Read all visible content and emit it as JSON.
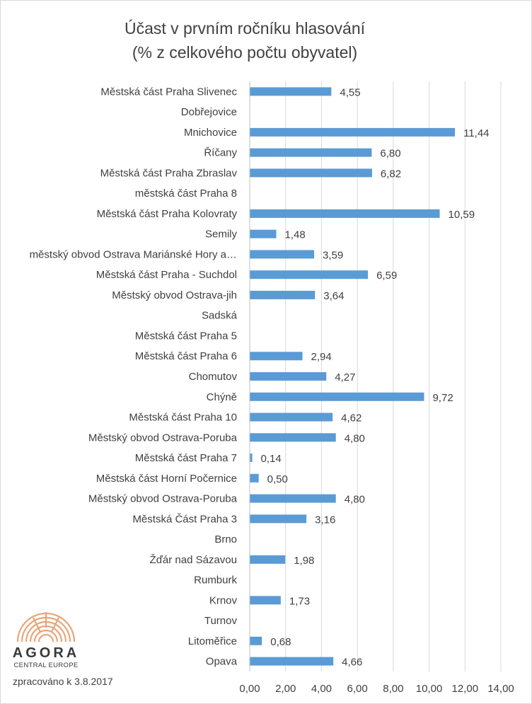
{
  "chart_data": {
    "type": "bar",
    "orientation": "horizontal",
    "title": "Účast v prvním ročníku hlasování",
    "subtitle": "(% z celkového počtu obyvatel)",
    "categories": [
      "Městská část Praha Slivenec",
      "Dobřejovice",
      "Mnichovice",
      "Říčany",
      "Městská část Praha Zbraslav",
      "městská část Praha 8",
      "Městská část Praha Kolovraty",
      "Semily",
      "městský obvod Ostrava Mariánské Hory  a…",
      "Městská část Praha - Suchdol",
      "Městský obvod Ostrava-jih",
      "Sadská",
      "Městská část Praha 5",
      "Městská část Praha 6",
      "Chomutov",
      "Chýně",
      "Městská část Praha 10",
      "Městský obvod Ostrava-Poruba",
      "Městská část Praha 7",
      "Městská část Horní Počernice",
      "Městský obvod Ostrava-Poruba",
      "Městská Část Praha 3",
      "Brno",
      "Žďár nad Sázavou",
      "Rumburk",
      "Krnov",
      "Turnov",
      "Litoměřice",
      "Opava"
    ],
    "values": [
      4.55,
      null,
      11.44,
      6.8,
      6.82,
      null,
      10.59,
      1.48,
      3.59,
      6.59,
      3.64,
      null,
      null,
      2.94,
      4.27,
      9.72,
      4.62,
      4.8,
      0.14,
      0.5,
      4.8,
      3.16,
      null,
      1.98,
      null,
      1.73,
      null,
      0.68,
      4.66
    ],
    "value_labels": [
      "4,55",
      "",
      "11,44",
      "6,80",
      "6,82",
      "",
      "10,59",
      "1,48",
      "3,59",
      "6,59",
      "3,64",
      "",
      "",
      "2,94",
      "4,27",
      "9,72",
      "4,62",
      "4,80",
      "0,14",
      "0,50",
      "4,80",
      "3,16",
      "",
      "1,98",
      "",
      "1,73",
      "",
      "0,68",
      "4,66"
    ],
    "xlim": [
      0,
      14
    ],
    "xticks": [
      "0,00",
      "2,00",
      "4,00",
      "6,00",
      "8,00",
      "10,00",
      "12,00",
      "14,00"
    ],
    "xtick_values": [
      0,
      2,
      4,
      6,
      8,
      10,
      12,
      14
    ],
    "grid": "vertical",
    "legend": "none",
    "bar_color": "#5b9bd5",
    "grid_color": "#d9d9d9",
    "text_color": "#404040"
  },
  "logo": {
    "wordmark": "AGORA",
    "tagline": "CENTRAL EUROPE",
    "color": "#e8a67a"
  },
  "footnote": "zpracováno k 3.8.2017"
}
